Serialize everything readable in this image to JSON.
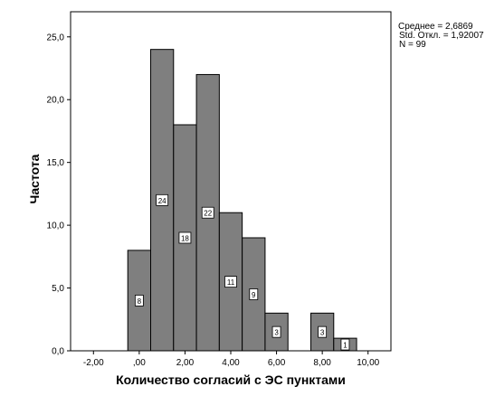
{
  "chart_data": {
    "type": "bar",
    "subtype": "histogram",
    "xlabel": "Количество согласий с ЭС пунктами",
    "ylabel": "Частота",
    "xlim": [
      -3.0,
      11.0
    ],
    "ylim": [
      0,
      27
    ],
    "x_ticks": [
      -2,
      0,
      2,
      4,
      6,
      8,
      10
    ],
    "x_tick_labels": [
      "-2,00",
      ",00",
      "2,00",
      "4,00",
      "6,00",
      "8,00",
      "10,00"
    ],
    "y_ticks": [
      0,
      5,
      10,
      15,
      20,
      25
    ],
    "y_tick_labels": [
      "0,0",
      "5,0",
      "10,0",
      "15,0",
      "20,0",
      "25,0"
    ],
    "bin_width": 1,
    "bins": [
      {
        "x": 0,
        "value": 8,
        "label": "8"
      },
      {
        "x": 1,
        "value": 24,
        "label": "24"
      },
      {
        "x": 2,
        "value": 18,
        "label": "18"
      },
      {
        "x": 3,
        "value": 22,
        "label": "22"
      },
      {
        "x": 4,
        "value": 11,
        "label": "11"
      },
      {
        "x": 5,
        "value": 9,
        "label": "9"
      },
      {
        "x": 6,
        "value": 3,
        "label": "3"
      },
      {
        "x": 7,
        "value": 0,
        "label": ""
      },
      {
        "x": 8,
        "value": 3,
        "label": "3"
      },
      {
        "x": 9,
        "value": 1,
        "label": "1"
      }
    ],
    "stats": {
      "mean_text": "Среднее = 2,6869",
      "std_text": "Std. Откл. = 1,92007",
      "n_text": "N = 99"
    },
    "colors": {
      "bar_fill": "#7f7f7f",
      "bar_stroke": "#000000",
      "plot_background": "#ffffff",
      "frame": "#000000"
    },
    "grid": false
  }
}
